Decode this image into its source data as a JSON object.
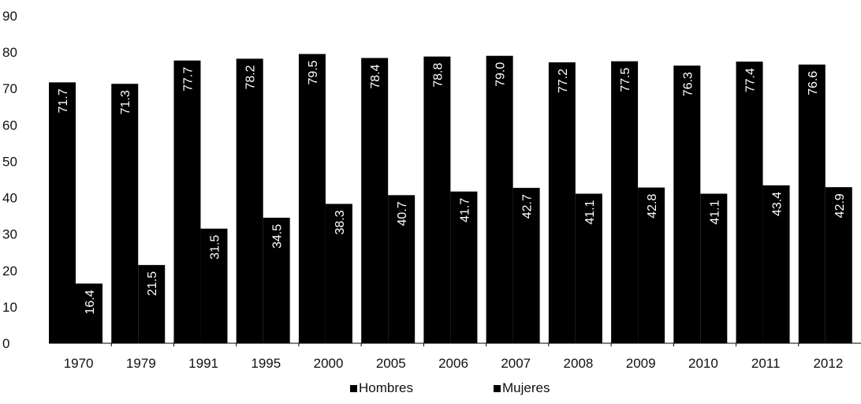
{
  "chart_data": {
    "type": "bar",
    "title": "",
    "xlabel": "",
    "ylabel": "",
    "ylim": [
      0,
      90
    ],
    "yticks": [
      "0",
      "10",
      "20",
      "30",
      "40",
      "50",
      "60",
      "70",
      "80",
      "90"
    ],
    "grid": false,
    "legend_position": "bottom",
    "categories": [
      "1970",
      "1979",
      "1991",
      "1995",
      "2000",
      "2005",
      "2006",
      "2007",
      "2008",
      "2009",
      "2010",
      "2011",
      "2012"
    ],
    "series": [
      {
        "name": "Hombres",
        "color": "#000000",
        "values": [
          71.7,
          71.3,
          77.7,
          78.2,
          79.5,
          78.4,
          78.8,
          79.0,
          77.2,
          77.5,
          76.3,
          77.4,
          76.6
        ],
        "labels": [
          "71.7",
          "71.3",
          "77.7",
          "78.2",
          "79.5",
          "78.4",
          "78.8",
          "79.0",
          "77.2",
          "77.5",
          "76.3",
          "77.4",
          "76.6"
        ]
      },
      {
        "name": "Mujeres",
        "color": "#000000",
        "values": [
          16.4,
          21.5,
          31.5,
          34.5,
          38.3,
          40.7,
          41.7,
          42.7,
          41.1,
          42.8,
          41.1,
          43.4,
          42.9
        ],
        "labels": [
          "16.4",
          "21.5",
          "31.5",
          "34.5",
          "38.3",
          "40.7",
          "41.7",
          "42.7",
          "41.1",
          "42.8",
          "41.1",
          "43.4",
          "42.9"
        ]
      }
    ]
  }
}
